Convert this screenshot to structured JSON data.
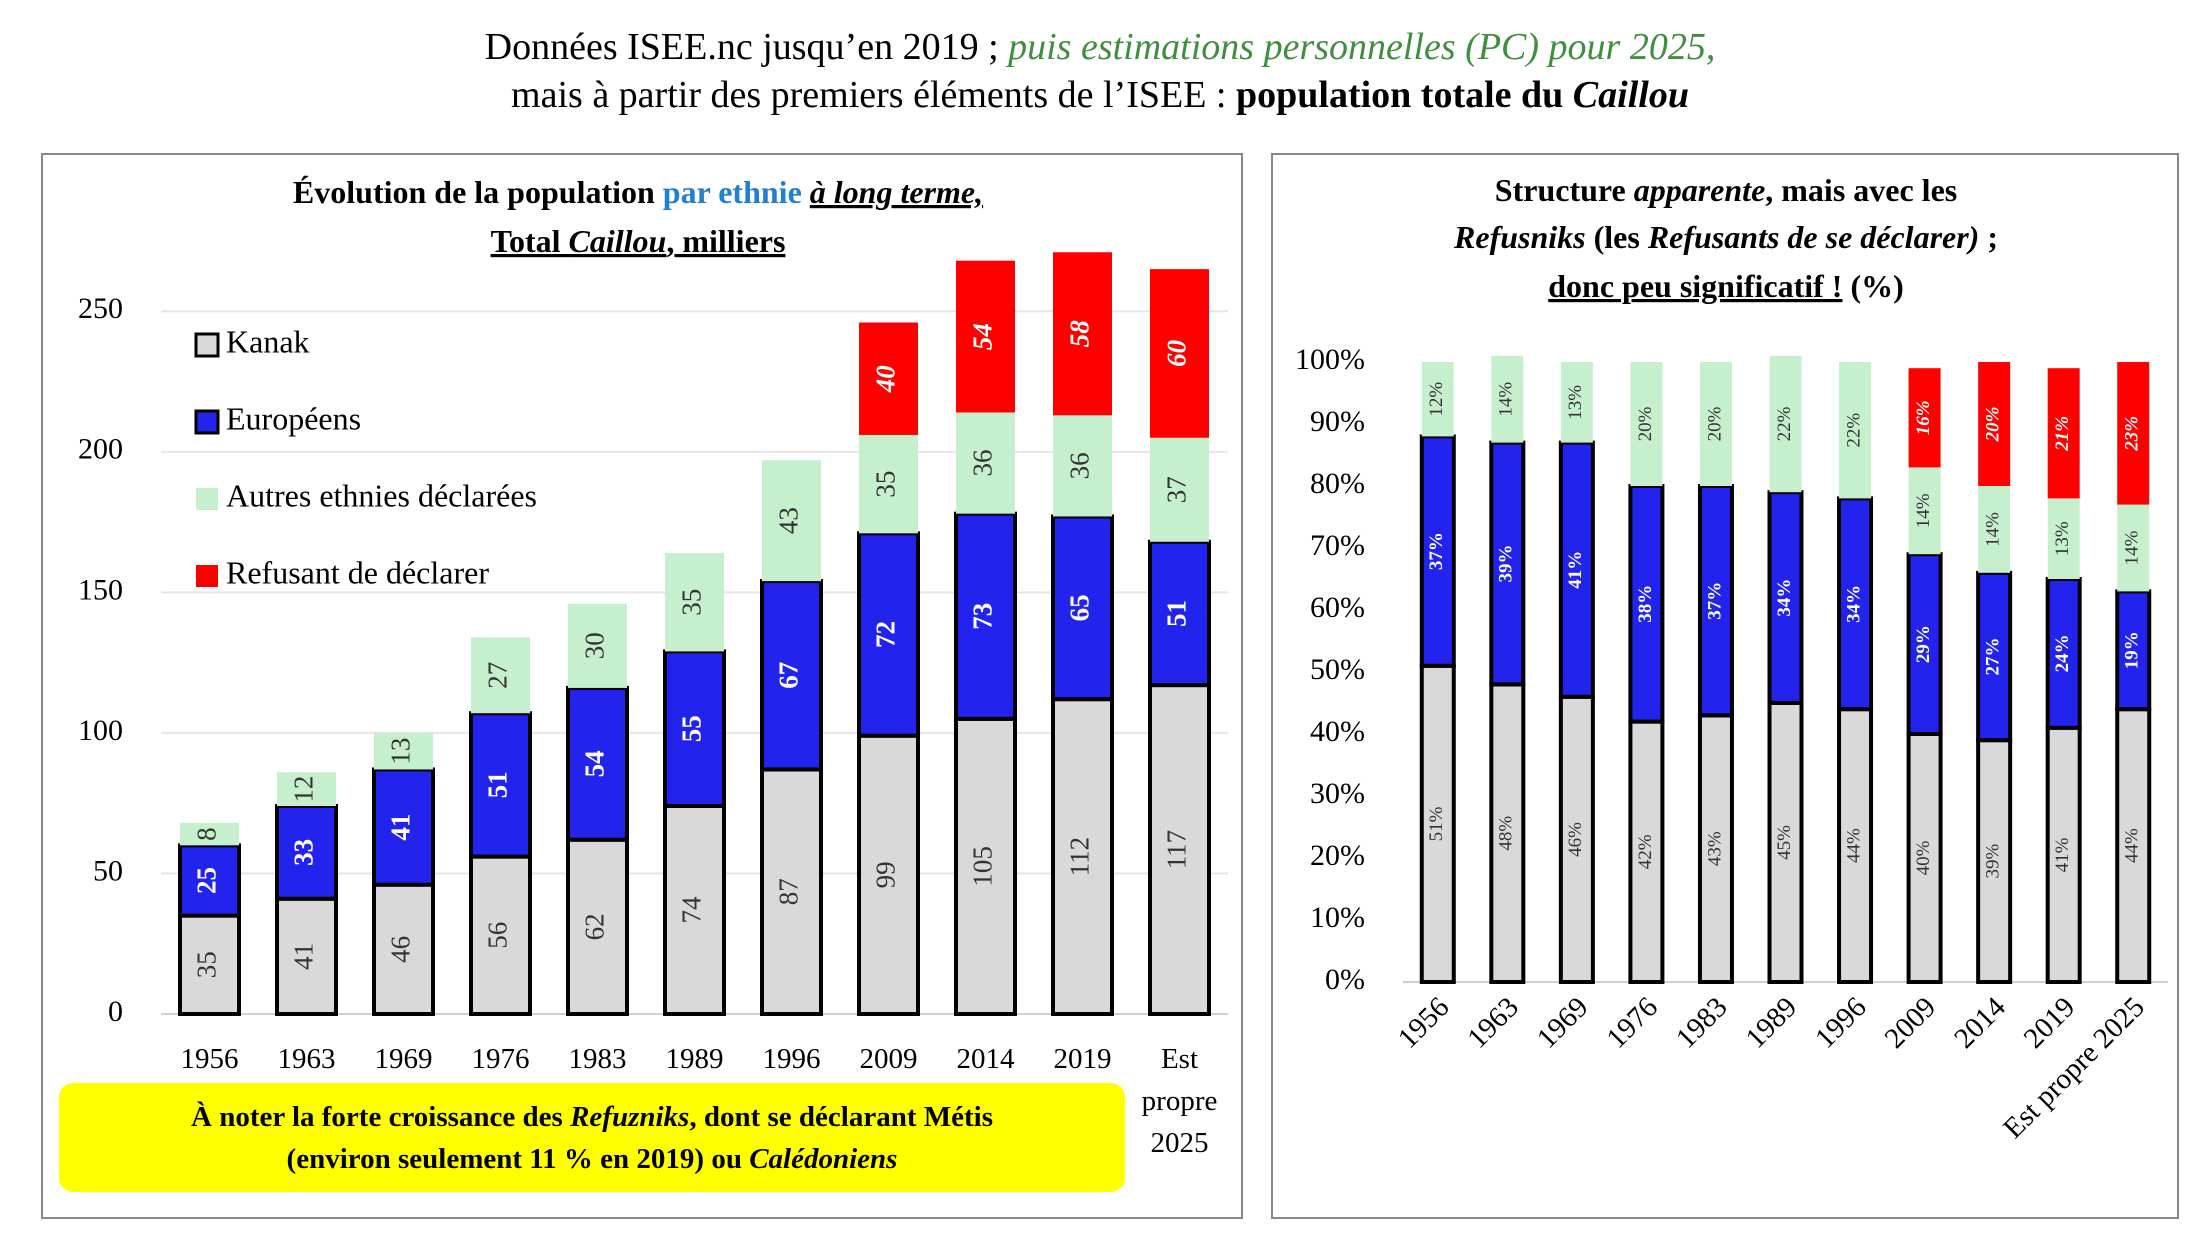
{
  "header": {
    "line1": [
      "Données ISEE.nc jusqu’en 2019 ; ",
      "puis estimations personnelles (PC) pour 2025,"
    ],
    "line2": [
      "mais à partir des premiers éléments de l’ISEE : ",
      "population totale du ",
      "Caillou"
    ]
  },
  "chart_data": [
    {
      "type": "stacked_bar",
      "title": [
        [
          "Évolution de la population ",
          "par ethnie ",
          "à long terme,"
        ],
        [
          "Total ",
          "Caillou",
          ", milliers"
        ]
      ],
      "categories": [
        "1956",
        "1963",
        "1969",
        "1976",
        "1983",
        "1989",
        "1996",
        "2009",
        "2014",
        "2019",
        "Est propre 2025"
      ],
      "series": [
        {
          "name": "Kanak",
          "color": "#d9d9d9",
          "edgecolor": "#000000",
          "values": [
            35,
            41,
            46,
            56,
            62,
            74,
            87,
            99,
            105,
            112,
            117
          ]
        },
        {
          "name": "Européens",
          "color": "#2323ee",
          "edgecolor": "#000000",
          "values": [
            25,
            33,
            41,
            51,
            54,
            55,
            67,
            72,
            73,
            65,
            51
          ]
        },
        {
          "name": "Autres ethnies déclarées",
          "color": "#c6efce",
          "values": [
            8,
            12,
            13,
            27,
            30,
            35,
            43,
            35,
            36,
            36,
            37
          ]
        },
        {
          "name": "Refusant de déclarer",
          "color": "#ff0000",
          "values": [
            null,
            null,
            null,
            null,
            null,
            null,
            null,
            40,
            54,
            58,
            60
          ]
        }
      ],
      "ylim": [
        0,
        275
      ],
      "yticks": [
        0,
        50,
        100,
        150,
        200,
        250
      ],
      "grid": true,
      "legend": "upper left"
    },
    {
      "type": "stacked_bar",
      "title": [
        [
          "Structure ",
          "apparente",
          ", mais avec les"
        ],
        [
          "Refusniks",
          " (les ",
          "Refusants de se déclarer)",
          " ;"
        ],
        [
          "donc peu significatif !",
          " (%)"
        ]
      ],
      "categories": [
        "1956",
        "1963",
        "1969",
        "1976",
        "1983",
        "1989",
        "1996",
        "2009",
        "2014",
        "2019",
        "Est propre 2025"
      ],
      "series": [
        {
          "color": "#d9d9d9",
          "edgecolor": "#000000",
          "values": [
            51,
            48,
            46,
            42,
            43,
            45,
            44,
            40,
            39,
            41,
            44
          ],
          "value_labels": [
            "51%",
            "48%",
            "46%",
            "42%",
            "43%",
            "45%",
            "44%",
            "40%",
            "39%",
            "41%",
            "44%"
          ]
        },
        {
          "color": "#2323ee",
          "edgecolor": "#000000",
          "values": [
            37,
            39,
            41,
            38,
            37,
            34,
            34,
            29,
            27,
            24,
            19
          ],
          "value_labels": [
            "37%",
            "39%",
            "41%",
            "38%",
            "37%",
            "34%",
            "34%",
            "29%",
            "27%",
            "24%",
            "19%"
          ]
        },
        {
          "color": "#c6efce",
          "values": [
            12,
            14,
            13,
            20,
            20,
            22,
            22,
            14,
            14,
            13,
            14
          ],
          "value_labels": [
            "12%",
            "14%",
            "13%",
            "20%",
            "20%",
            "22%",
            "22%",
            "14%",
            "14%",
            "13%",
            "14%"
          ]
        },
        {
          "color": "#ff0000",
          "values": [
            null,
            null,
            null,
            null,
            null,
            null,
            null,
            16,
            20,
            21,
            23
          ],
          "value_labels": [
            null,
            null,
            null,
            null,
            null,
            null,
            null,
            "16%",
            "20%",
            "21%",
            "23%"
          ]
        }
      ],
      "ylim": [
        0,
        100
      ],
      "yticks": [
        {
          "value": 0,
          "label": "0%"
        },
        {
          "value": 10,
          "label": "10%"
        },
        {
          "value": 20,
          "label": "20%"
        },
        {
          "value": 30,
          "label": "30%"
        },
        {
          "value": 40,
          "label": "40%"
        },
        {
          "value": 50,
          "label": "50%"
        },
        {
          "value": 60,
          "label": "60%"
        },
        {
          "value": 70,
          "label": "70%"
        },
        {
          "value": 80,
          "label": "80%"
        },
        {
          "value": 90,
          "label": "90%"
        },
        {
          "value": 100,
          "label": "100%"
        }
      ],
      "grid": false
    }
  ],
  "note": {
    "line1": [
      "À noter la forte croissance des ",
      "Refuzniks",
      ", dont se déclarant Métis"
    ],
    "line2": [
      "(environ seulement 11 % en 2019) ou ",
      "Calédoniens"
    ]
  }
}
